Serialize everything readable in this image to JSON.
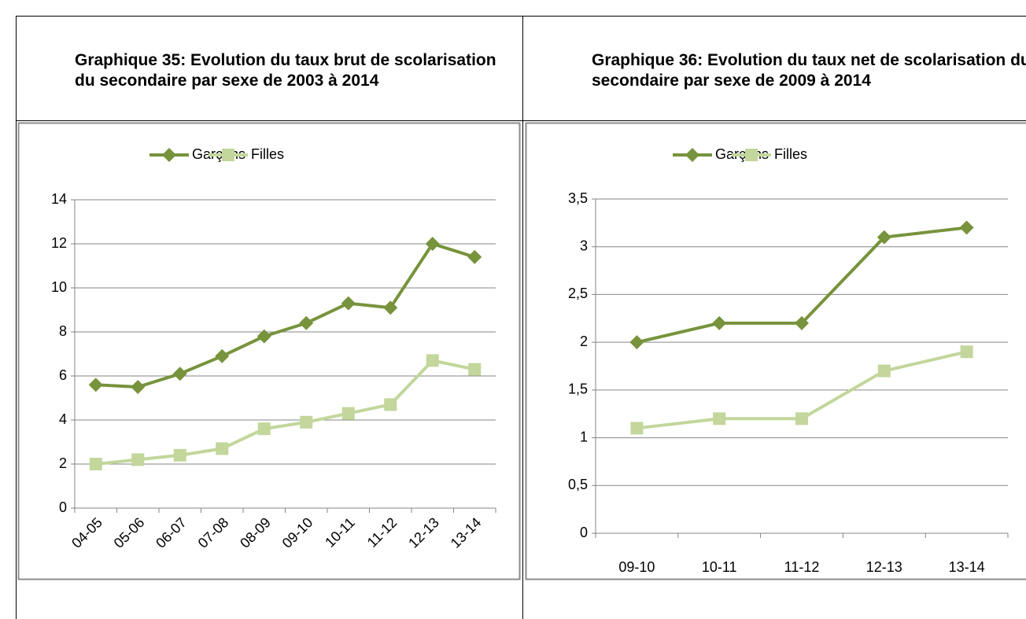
{
  "chart_data": [
    {
      "type": "line",
      "title": "Graphique 35: Evolution du taux brut de scolarisation du secondaire par sexe de 2003 à 2014",
      "categories": [
        "04-05",
        "05-06",
        "06-07",
        "07-08",
        "08-09",
        "09-10",
        "10-11",
        "11-12",
        "12-13",
        "13-14"
      ],
      "series": [
        {
          "name": "Garçons",
          "color": "#77933c",
          "marker": "diamond",
          "values": [
            5.6,
            5.5,
            6.1,
            6.9,
            7.8,
            8.4,
            9.3,
            9.1,
            12.0,
            11.4
          ]
        },
        {
          "name": "Filles",
          "color": "#c3d69b",
          "marker": "square",
          "values": [
            2.0,
            2.2,
            2.4,
            2.7,
            3.6,
            3.9,
            4.3,
            4.7,
            6.7,
            6.3
          ]
        }
      ],
      "ylim": [
        0,
        14
      ],
      "yticks": [
        0,
        2,
        4,
        6,
        8,
        10,
        12,
        14
      ],
      "grid": true,
      "legend": "top"
    },
    {
      "type": "line",
      "title": "Graphique 36: Evolution du taux net de scolarisation du secondaire par sexe de 2009 à 2014",
      "categories": [
        "09-10",
        "10-11",
        "11-12",
        "12-13",
        "13-14"
      ],
      "series": [
        {
          "name": "Garçons",
          "color": "#77933c",
          "marker": "diamond",
          "values": [
            2.0,
            2.2,
            2.2,
            3.1,
            3.2
          ]
        },
        {
          "name": "Filles",
          "color": "#c3d69b",
          "marker": "square",
          "values": [
            1.1,
            1.2,
            1.2,
            1.7,
            1.9
          ]
        }
      ],
      "ylim": [
        0,
        3.5
      ],
      "yticks": [
        0,
        {
          "value": 0.5,
          "label": "0,5"
        },
        1,
        {
          "value": 1.5,
          "label": "1,5"
        },
        2,
        {
          "value": 2.5,
          "label": "2,5"
        },
        3,
        {
          "value": 3.5,
          "label": "3,5"
        }
      ],
      "grid": true,
      "legend": "top"
    }
  ]
}
